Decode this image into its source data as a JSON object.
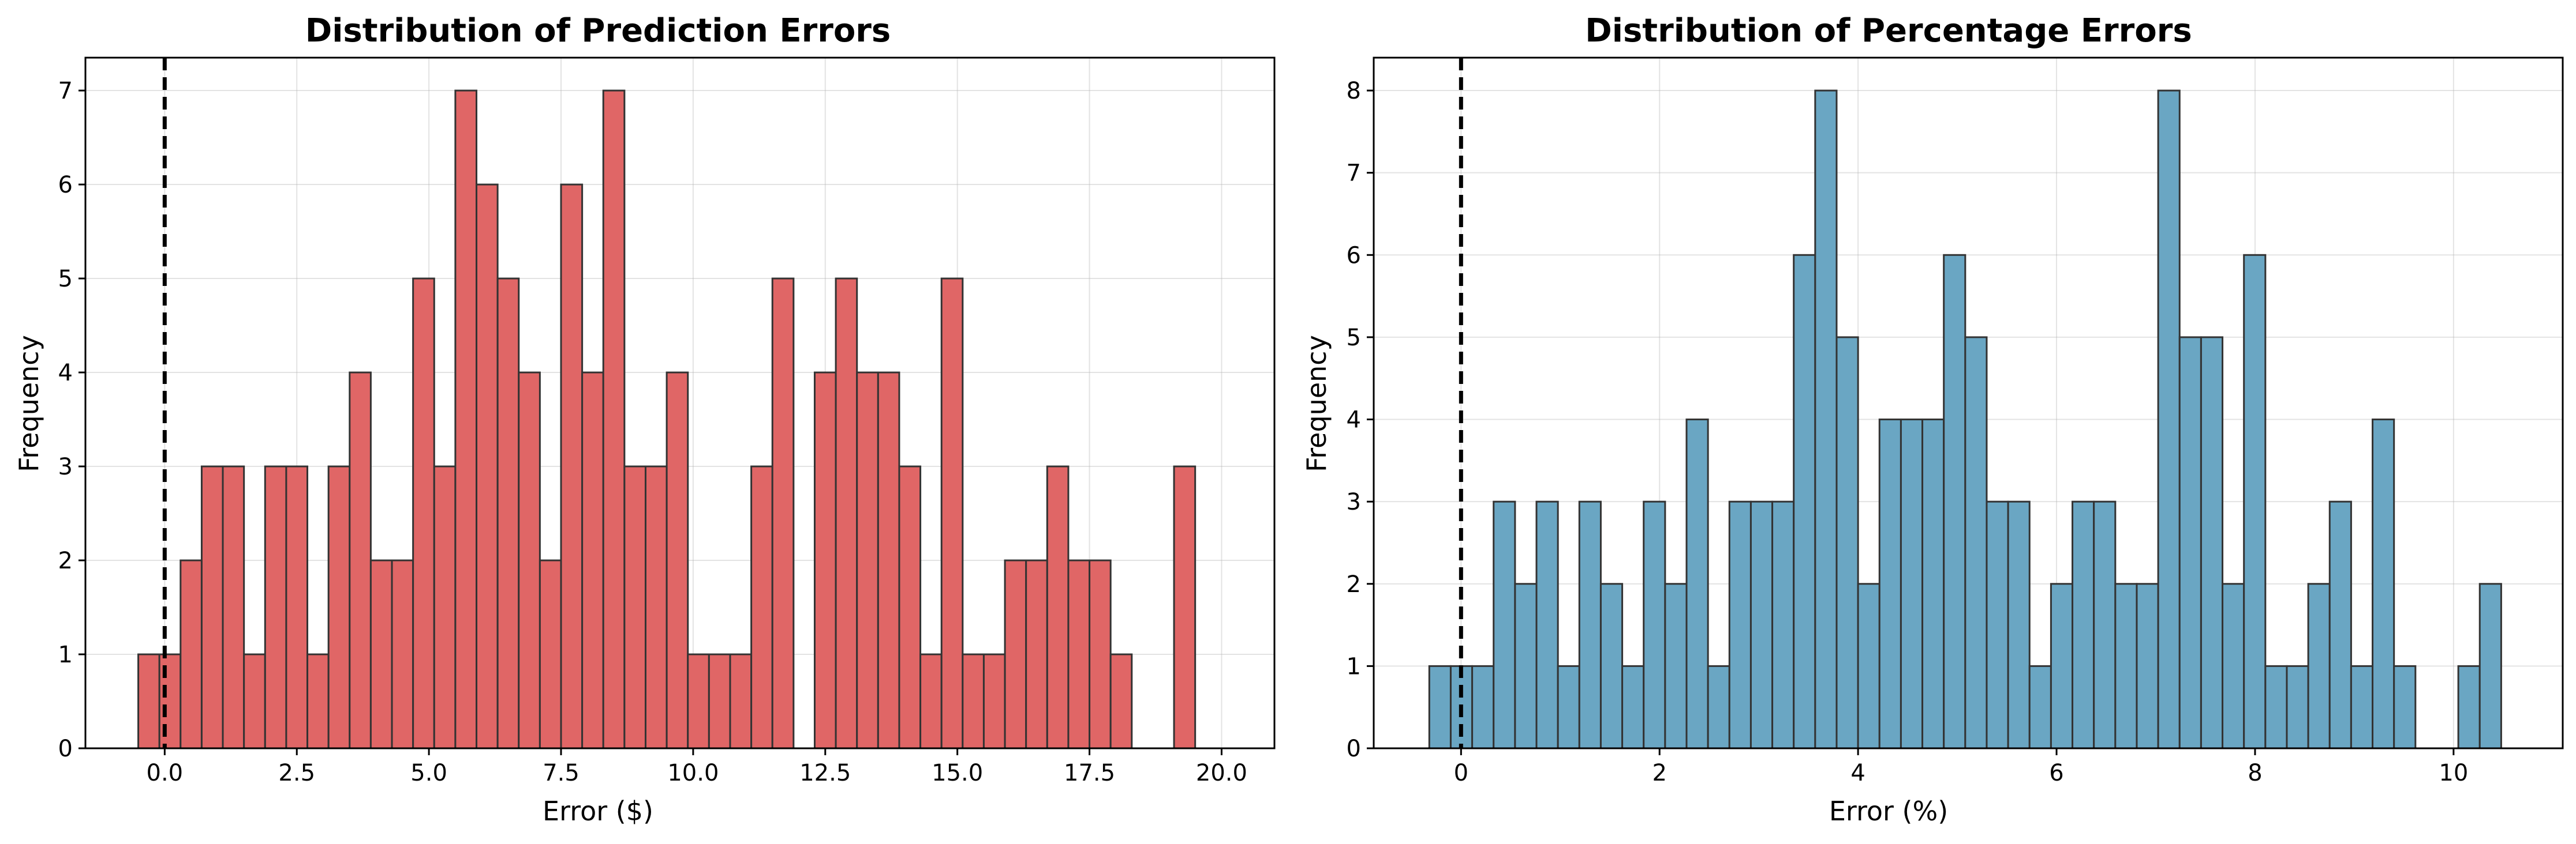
{
  "chart_data": [
    {
      "type": "bar",
      "title": "Distribution of Prediction Errors",
      "xlabel": "Error ($)",
      "ylabel": "Frequency",
      "xlim": [
        -1.5,
        21.0
      ],
      "ylim": [
        0,
        7.35
      ],
      "x_ticks": [
        0,
        2.5,
        5,
        7.5,
        10,
        12.5,
        15,
        17.5,
        20
      ],
      "x_tick_labels": [
        "0.0",
        "2.5",
        "5.0",
        "7.5",
        "10.0",
        "12.5",
        "15.0",
        "17.5",
        "20.0"
      ],
      "y_ticks": [
        0,
        1,
        2,
        3,
        4,
        5,
        6,
        7
      ],
      "y_tick_labels": [
        "0",
        "1",
        "2",
        "3",
        "4",
        "5",
        "6",
        "7"
      ],
      "grid": true,
      "reference_line_x": 0,
      "bar_color": "#e06666",
      "edge_color": "#333333",
      "bin_start": -0.5,
      "bin_width": 0.4,
      "values": [
        1,
        1,
        2,
        3,
        3,
        1,
        3,
        3,
        1,
        3,
        4,
        2,
        2,
        5,
        3,
        7,
        6,
        5,
        4,
        2,
        6,
        4,
        7,
        3,
        3,
        4,
        1,
        1,
        1,
        3,
        5,
        0,
        4,
        5,
        4,
        4,
        3,
        1,
        5,
        1,
        1,
        2,
        2,
        3,
        2,
        2,
        1,
        0,
        0,
        3
      ]
    },
    {
      "type": "bar",
      "title": "Distribution of Percentage Errors",
      "xlabel": "Error (%)",
      "ylabel": "Frequency",
      "xlim": [
        -0.88,
        11.1
      ],
      "ylim": [
        0,
        8.4
      ],
      "x_ticks": [
        0,
        2,
        4,
        6,
        8,
        10
      ],
      "x_tick_labels": [
        "0",
        "2",
        "4",
        "6",
        "8",
        "10"
      ],
      "y_ticks": [
        0,
        1,
        2,
        3,
        4,
        5,
        6,
        7,
        8
      ],
      "y_tick_labels": [
        "0",
        "1",
        "2",
        "3",
        "4",
        "5",
        "6",
        "7",
        "8"
      ],
      "grid": true,
      "reference_line_x": 0,
      "bar_color": "#6aa6c3",
      "edge_color": "#333333",
      "bin_start": -0.32,
      "bin_width": 0.216,
      "values": [
        1,
        1,
        1,
        3,
        2,
        3,
        1,
        3,
        2,
        1,
        3,
        2,
        4,
        1,
        3,
        3,
        3,
        6,
        8,
        5,
        2,
        4,
        4,
        4,
        6,
        5,
        3,
        3,
        1,
        2,
        3,
        3,
        2,
        2,
        8,
        5,
        5,
        2,
        6,
        1,
        1,
        2,
        3,
        1,
        4,
        1,
        0,
        0,
        1,
        2
      ]
    }
  ]
}
